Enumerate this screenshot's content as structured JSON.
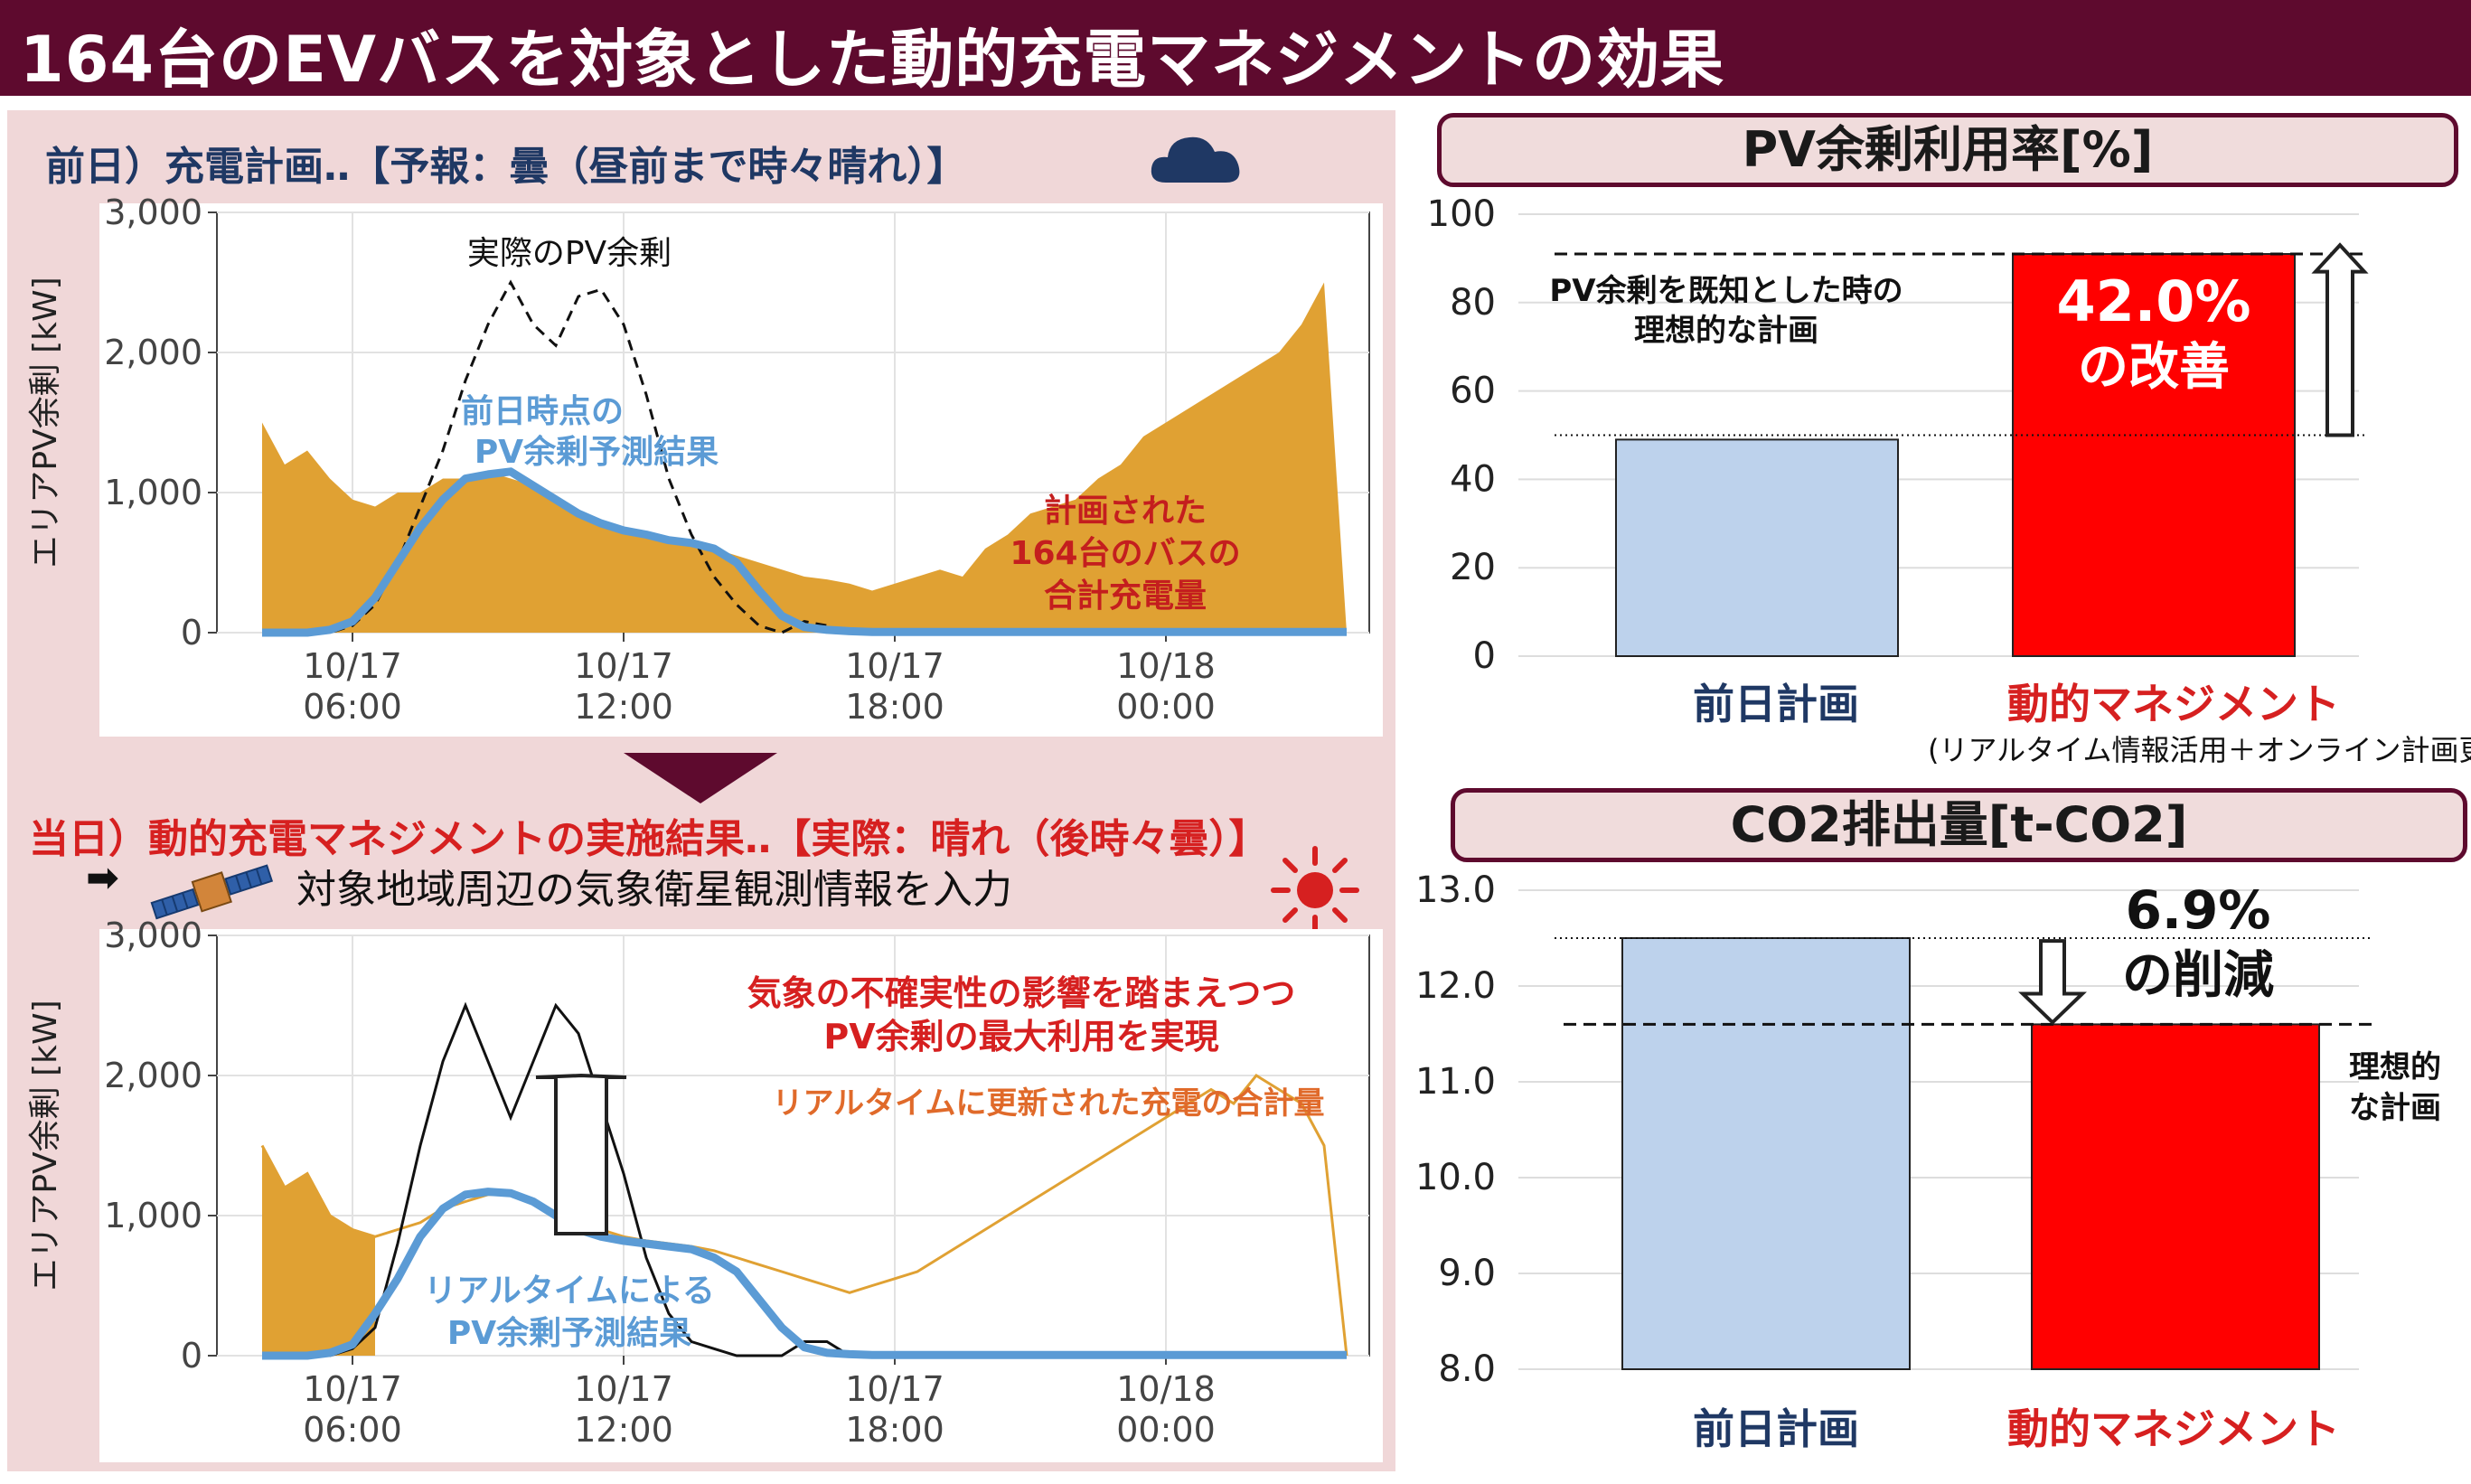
{
  "title": "164台のEVバスを対象とした動的充電マネジメントの効果",
  "top_panel": {
    "title": "前日）充電計画‥【予報：曇（昼前まで時々晴れ）】",
    "weather_icon": "cloud-icon",
    "annotations": {
      "actual": "実際のPV余剰",
      "forecast_l1": "前日時点の",
      "forecast_l2": "PV余剰予測結果",
      "charge_l1": "計画された",
      "charge_l2": "164台のバスの",
      "charge_l3": "合計充電量"
    }
  },
  "bottom_panel": {
    "title": "当日）動的充電マネジメントの実施結果‥【実際：晴れ（後時々曇）】",
    "weather_icon": "sun-icon",
    "input_arrow": "➡",
    "input_text": "対象地域周辺の気象衛星観測情報を入力",
    "satellite_icon": "satellite-icon",
    "annotations": {
      "red_l1": "気象の不確実性の影響を踏まえつつ",
      "red_l2": "PV余剰の最大利用を実現",
      "orange": "リアルタイムに更新された充電の合計量",
      "rt_l1": "リアルタイムによる",
      "rt_l2": "PV余剰予測結果"
    }
  },
  "pv_header": "PV余剰利用率[%]",
  "pv_annotations": {
    "ideal_l1": "PV余剰を既知とした時の",
    "ideal_l2": "理想的な計画",
    "improve_l1": "42.0%",
    "improve_l2": "の改善",
    "sub_label": "(リアルタイム情報活用＋オンライン計画更新)"
  },
  "co2_header": "CO2排出量[t-CO2]",
  "co2_annotations": {
    "reduce_l1": "6.9%",
    "reduce_l2": "の削減",
    "ideal_l1": "理想的",
    "ideal_l2": "な計画"
  },
  "colors": {
    "title_bg": "#5e0a2e",
    "panel_bg": "#f0d7d8",
    "charge_fill": "#e0a133",
    "forecast_line": "#5b9bd5",
    "blue_bar": "#bdd2ec",
    "red_bar": "#ff0000",
    "red_text": "#d62020",
    "navy_text": "#1f3864"
  },
  "chart_data": [
    {
      "type": "area",
      "name": "top-timeseries",
      "ylabel": "エリアPV余剰 [kW]",
      "ylim": [
        0,
        3000
      ],
      "yticks": [
        "0",
        "1,000",
        "2,000",
        "3,000"
      ],
      "xticks": [
        "10/17\n06:00",
        "10/17\n12:00",
        "10/17\n18:00",
        "10/18\n00:00"
      ],
      "x_hours": [
        4,
        4.5,
        5,
        5.5,
        6,
        6.5,
        7,
        7.5,
        8,
        8.5,
        9,
        9.5,
        10,
        10.5,
        11,
        11.5,
        12,
        12.5,
        13,
        13.5,
        14,
        14.5,
        15,
        15.5,
        16,
        16.5,
        17,
        17.5,
        18,
        18.5,
        19,
        19.5,
        20,
        20.5,
        21,
        21.5,
        22,
        22.5,
        23,
        23.5,
        24,
        24.5,
        25,
        25.5,
        26,
        26.5,
        27,
        27.5,
        28
      ],
      "series": [
        {
          "name": "計画された164台のバスの合計充電量",
          "style": "filled-area",
          "values": [
            1500,
            1200,
            1300,
            1100,
            950,
            900,
            1000,
            1000,
            1100,
            1100,
            1150,
            1100,
            1050,
            950,
            850,
            780,
            750,
            700,
            680,
            650,
            600,
            550,
            500,
            450,
            400,
            380,
            350,
            300,
            350,
            400,
            450,
            400,
            600,
            700,
            850,
            900,
            950,
            1100,
            1200,
            1400,
            1500,
            1600,
            1700,
            1800,
            1900,
            2000,
            2200,
            2500,
            0
          ]
        },
        {
          "name": "実際のPV余剰",
          "style": "dashed",
          "values": [
            0,
            0,
            0,
            0,
            50,
            200,
            500,
            900,
            1300,
            1800,
            2200,
            2500,
            2200,
            2050,
            2400,
            2450,
            2200,
            1700,
            1100,
            700,
            400,
            200,
            50,
            0,
            80,
            50,
            0,
            0,
            0,
            0,
            0,
            0,
            0,
            0,
            0,
            0,
            0,
            0,
            0,
            0,
            0,
            0,
            0,
            0,
            0,
            0,
            0,
            0,
            0
          ]
        },
        {
          "name": "前日時点のPV余剰予測結果",
          "style": "line",
          "values": [
            0,
            0,
            0,
            20,
            80,
            250,
            500,
            750,
            950,
            1100,
            1130,
            1150,
            1050,
            950,
            850,
            780,
            730,
            700,
            660,
            640,
            600,
            500,
            300,
            120,
            40,
            20,
            10,
            5,
            5,
            5,
            5,
            5,
            5,
            5,
            5,
            5,
            5,
            5,
            5,
            5,
            5,
            5,
            5,
            5,
            5,
            5,
            5,
            5,
            5
          ]
        }
      ]
    },
    {
      "type": "area",
      "name": "bottom-timeseries",
      "ylabel": "エリアPV余剰 [kW]",
      "ylim": [
        0,
        3000
      ],
      "yticks": [
        "0",
        "1,000",
        "2,000",
        "3,000"
      ],
      "xticks": [
        "10/17\n06:00",
        "10/17\n12:00",
        "10/17\n18:00",
        "10/18\n00:00"
      ],
      "x_hours": [
        4,
        4.5,
        5,
        5.5,
        6,
        6.5,
        7,
        7.5,
        8,
        8.5,
        9,
        9.5,
        10,
        10.5,
        11,
        11.5,
        12,
        12.5,
        13,
        13.5,
        14,
        14.5,
        15,
        15.5,
        16,
        16.5,
        17,
        17.5,
        18,
        18.5,
        19,
        19.5,
        20,
        20.5,
        21,
        21.5,
        22,
        22.5,
        23,
        23.5,
        24,
        24.5,
        25,
        25.5,
        26,
        26.5,
        27,
        27.5,
        28
      ],
      "series": [
        {
          "name": "リアルタイムに更新された充電の合計量",
          "style": "line",
          "values": [
            1500,
            1200,
            1300,
            1000,
            900,
            850,
            900,
            950,
            1050,
            1100,
            1150,
            1150,
            1100,
            1000,
            950,
            900,
            850,
            820,
            800,
            780,
            750,
            700,
            650,
            600,
            550,
            500,
            450,
            500,
            550,
            600,
            700,
            800,
            900,
            1000,
            1100,
            1200,
            1300,
            1400,
            1500,
            1600,
            1700,
            1800,
            1900,
            1800,
            2000,
            1900,
            1800,
            1500,
            0
          ]
        },
        {
          "name": "実際のPV余剰",
          "style": "solid",
          "values": [
            0,
            0,
            0,
            0,
            50,
            200,
            800,
            1500,
            2100,
            2500,
            2100,
            1700,
            2100,
            2500,
            2300,
            1800,
            1300,
            700,
            300,
            100,
            50,
            0,
            0,
            0,
            100,
            100,
            0,
            0,
            0,
            0,
            0,
            0,
            0,
            0,
            0,
            0,
            0,
            0,
            0,
            0,
            0,
            0,
            0,
            0,
            0,
            0,
            0,
            0,
            0
          ]
        },
        {
          "name": "リアルタイムによるPV余剰予測結果",
          "style": "line",
          "values": [
            0,
            0,
            0,
            20,
            80,
            300,
            550,
            850,
            1050,
            1150,
            1170,
            1160,
            1100,
            1000,
            900,
            850,
            820,
            800,
            780,
            760,
            700,
            600,
            400,
            200,
            60,
            20,
            10,
            5,
            5,
            5,
            5,
            5,
            5,
            5,
            5,
            5,
            5,
            5,
            5,
            5,
            5,
            5,
            5,
            5,
            5,
            5,
            5,
            5,
            5
          ]
        }
      ]
    },
    {
      "type": "bar",
      "name": "pv-utilization",
      "categories": [
        "前日計画",
        "動的マネジメント"
      ],
      "values": [
        49,
        91
      ],
      "ylim": [
        0,
        100
      ],
      "yticks": [
        "0",
        "20",
        "40",
        "60",
        "80",
        "100"
      ],
      "ideal": 91,
      "baseline": 50
    },
    {
      "type": "bar",
      "name": "co2",
      "categories": [
        "前日計画",
        "動的マネジメント"
      ],
      "values": [
        12.5,
        11.6
      ],
      "ylim": [
        8.0,
        13.0
      ],
      "yticks": [
        "8.0",
        "9.0",
        "10.0",
        "11.0",
        "12.0",
        "13.0"
      ],
      "ideal": 11.6,
      "baseline": 12.5
    }
  ]
}
